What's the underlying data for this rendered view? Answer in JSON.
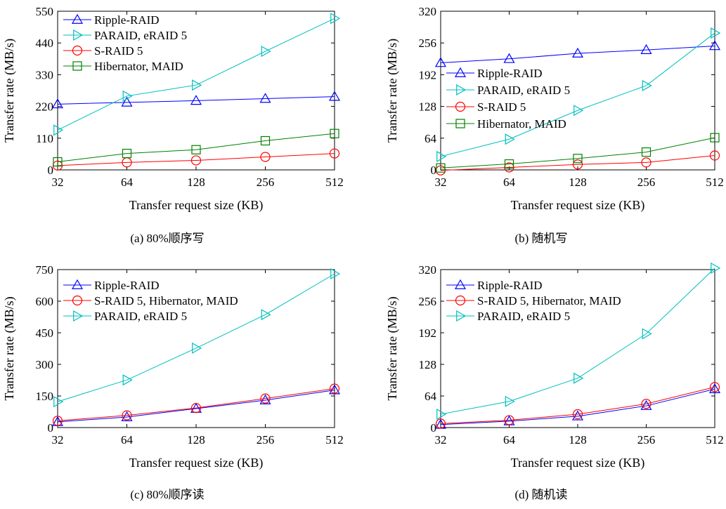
{
  "figure": {
    "series_styles": [
      {
        "name": "Ripple-RAID",
        "color": "#0000ff",
        "marker": "triangle-up"
      },
      {
        "name": "PARAID, eRAID 5",
        "color": "#00bfbf",
        "marker": "triangle-right"
      },
      {
        "name": "S-RAID 5",
        "color": "#ff0000",
        "marker": "circle"
      },
      {
        "name": "Hibernator, MAID",
        "color": "#008000",
        "marker": "square"
      }
    ]
  },
  "chart_data": [
    {
      "type": "line",
      "caption": "(a) 80%顺序写",
      "xlabel": "Transfer request size (KB)",
      "ylabel": "Transfer rate (MB/s)",
      "x_scale": "log2",
      "x": [
        32,
        64,
        128,
        256,
        512
      ],
      "x_ticks": [
        "32",
        "64",
        "128",
        "256",
        "512"
      ],
      "ylim": [
        0,
        550
      ],
      "y_ticks": [
        0,
        110,
        220,
        330,
        440,
        550
      ],
      "legend_position": "top-left",
      "series": [
        {
          "name": "Ripple-RAID",
          "color": "#0000ff",
          "marker": "triangle-up",
          "values": [
            228,
            234,
            240,
            247,
            254
          ]
        },
        {
          "name": "PARAID, eRAID 5",
          "color": "#00bfbf",
          "marker": "triangle-right",
          "values": [
            138,
            256,
            294,
            411,
            525
          ]
        },
        {
          "name": "S-RAID 5",
          "color": "#ff0000",
          "marker": "circle",
          "values": [
            15,
            26,
            33,
            45,
            57
          ]
        },
        {
          "name": "Hibernator, MAID",
          "color": "#008000",
          "marker": "square",
          "values": [
            28,
            57,
            70,
            101,
            126
          ]
        }
      ]
    },
    {
      "type": "line",
      "caption": "(b)  随机写",
      "xlabel": "Transfer request size (KB)",
      "ylabel": "Transfer rate (MB/s)",
      "x_scale": "log2",
      "x": [
        32,
        64,
        128,
        256,
        512
      ],
      "x_ticks": [
        "32",
        "64",
        "128",
        "256",
        "512"
      ],
      "ylim": [
        0,
        320
      ],
      "y_ticks": [
        0,
        64,
        128,
        192,
        256,
        320
      ],
      "legend_position": "center-left",
      "series": [
        {
          "name": "Ripple-RAID",
          "color": "#0000ff",
          "marker": "triangle-up",
          "values": [
            216,
            224,
            235,
            242,
            250
          ]
        },
        {
          "name": "PARAID, eRAID 5",
          "color": "#00bfbf",
          "marker": "triangle-right",
          "values": [
            27,
            62,
            120,
            170,
            276
          ]
        },
        {
          "name": "S-RAID 5",
          "color": "#ff0000",
          "marker": "circle",
          "values": [
            -1,
            5,
            11,
            15,
            29
          ]
        },
        {
          "name": "Hibernator, MAID",
          "color": "#008000",
          "marker": "square",
          "values": [
            4,
            12,
            23,
            36,
            65
          ]
        }
      ]
    },
    {
      "type": "line",
      "caption": "(c) 80%顺序读",
      "xlabel": "Transfer request size (KB)",
      "ylabel": "Transfer rate (MB/s)",
      "x_scale": "log2",
      "x": [
        32,
        64,
        128,
        256,
        512
      ],
      "x_ticks": [
        "32",
        "64",
        "128",
        "256",
        "512"
      ],
      "ylim": [
        0,
        750
      ],
      "y_ticks": [
        0,
        150,
        300,
        450,
        600,
        750
      ],
      "legend_position": "top-left",
      "series": [
        {
          "name": "Ripple-RAID",
          "color": "#0000ff",
          "marker": "triangle-up",
          "values": [
            27,
            50,
            90,
            130,
            178
          ]
        },
        {
          "name": "S-RAID 5, Hibernator, MAID",
          "color": "#ff0000",
          "marker": "circle",
          "values": [
            32,
            58,
            93,
            138,
            185
          ]
        },
        {
          "name": "PARAID, eRAID 5",
          "color": "#00bfbf",
          "marker": "triangle-right",
          "values": [
            123,
            226,
            377,
            536,
            730
          ]
        }
      ]
    },
    {
      "type": "line",
      "caption": "(d)  随机读",
      "xlabel": "Transfer request size (KB)",
      "ylabel": "Transfer rate (MB/s)",
      "x_scale": "log2",
      "x": [
        32,
        64,
        128,
        256,
        512
      ],
      "x_ticks": [
        "32",
        "64",
        "128",
        "256",
        "512"
      ],
      "ylim": [
        0,
        320
      ],
      "y_ticks": [
        0,
        64,
        128,
        192,
        256,
        320
      ],
      "legend_position": "top-left",
      "series": [
        {
          "name": "Ripple-RAID",
          "color": "#0000ff",
          "marker": "triangle-up",
          "values": [
            6,
            13,
            23,
            44,
            78
          ]
        },
        {
          "name": "S-RAID 5, Hibernator, MAID",
          "color": "#ff0000",
          "marker": "circle",
          "values": [
            8,
            15,
            27,
            48,
            82
          ]
        },
        {
          "name": "PARAID, eRAID 5",
          "color": "#00bfbf",
          "marker": "triangle-right",
          "values": [
            27,
            53,
            100,
            190,
            323
          ]
        }
      ]
    }
  ]
}
